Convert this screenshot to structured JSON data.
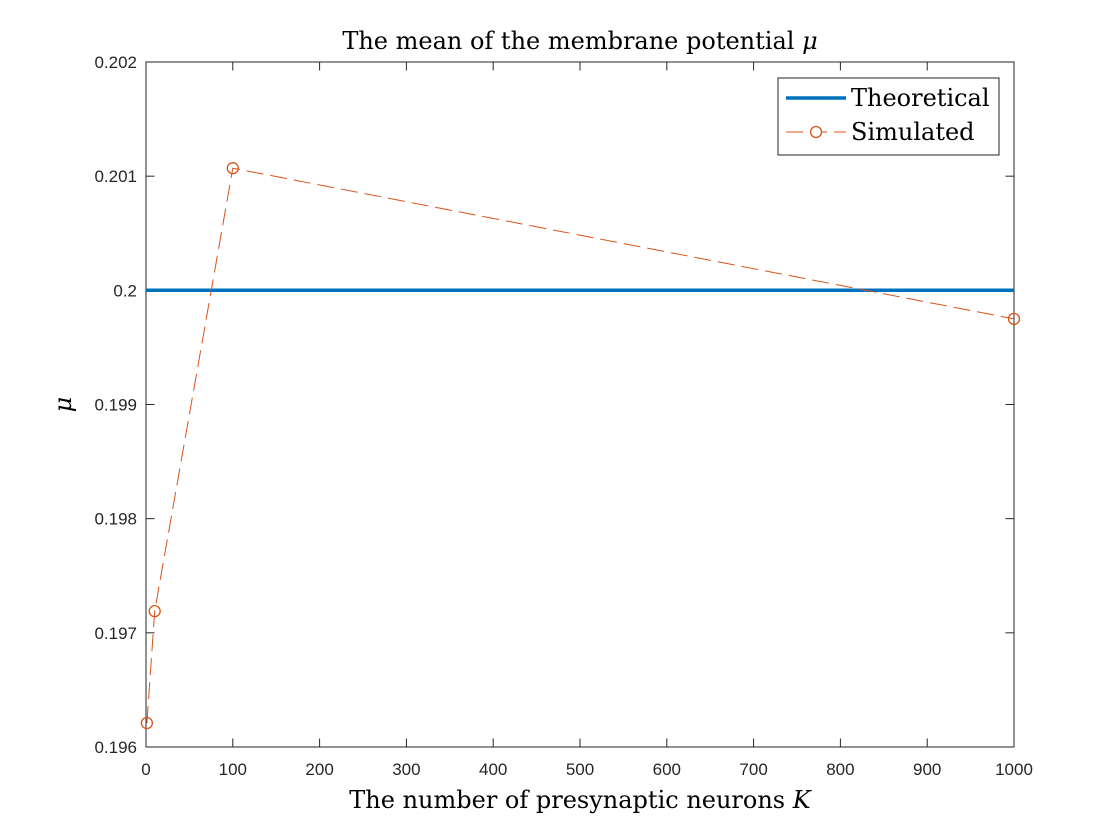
{
  "chart_data": {
    "type": "line",
    "title_main": "The mean of the membrane potential ",
    "title_symbol": "μ",
    "xlabel_main": "The number of presynaptic neurons ",
    "xlabel_symbol": "K",
    "ylabel": "μ",
    "xlim": [
      0,
      1000
    ],
    "ylim": [
      0.196,
      0.202
    ],
    "xticks": [
      0,
      100,
      200,
      300,
      400,
      500,
      600,
      700,
      800,
      900,
      1000
    ],
    "xtick_labels": [
      "0",
      "100",
      "200",
      "300",
      "400",
      "500",
      "600",
      "700",
      "800",
      "900",
      "1000"
    ],
    "yticks": [
      0.196,
      0.197,
      0.198,
      0.199,
      0.2,
      0.201,
      0.202
    ],
    "ytick_labels": [
      "0.196",
      "0.197",
      "0.198",
      "0.199",
      "0.2",
      "0.201",
      "0.202"
    ],
    "grid": false,
    "legend_position": "top-right",
    "series": [
      {
        "name": "Theoretical",
        "style": "solid",
        "marker": "none",
        "color": "#0072BD",
        "x": [
          0,
          1000
        ],
        "y": [
          0.2,
          0.2
        ]
      },
      {
        "name": "Simulated",
        "style": "dashed",
        "marker": "circle",
        "color": "#D95319",
        "x": [
          1,
          10,
          100,
          1000
        ],
        "y": [
          0.19621,
          0.19719,
          0.20107,
          0.19975
        ]
      }
    ]
  }
}
